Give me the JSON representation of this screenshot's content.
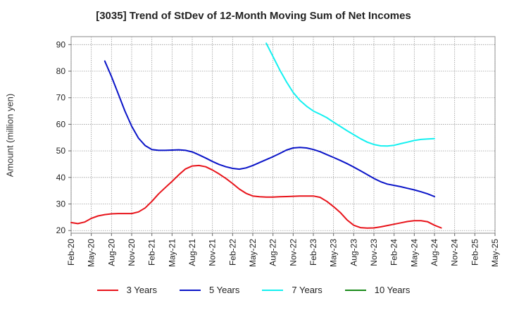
{
  "chart_data": {
    "type": "line",
    "title": "[3035]  Trend of StDev of 12-Month Moving Sum of Net Incomes",
    "xlabel": "",
    "ylabel": "Amount (million yen)",
    "ylim": [
      19,
      93
    ],
    "yticks": [
      20,
      30,
      40,
      50,
      60,
      70,
      80,
      90
    ],
    "grid": true,
    "legend_position": "bottom",
    "x_tick_labels": [
      "Feb-20",
      "May-20",
      "Aug-20",
      "Nov-20",
      "Feb-21",
      "May-21",
      "Aug-21",
      "Nov-21",
      "Feb-22",
      "May-22",
      "Aug-22",
      "Nov-22",
      "Feb-23",
      "May-23",
      "Aug-23",
      "Nov-23",
      "Feb-24",
      "May-24",
      "Aug-24",
      "Nov-24",
      "Feb-25",
      "May-25"
    ],
    "series": [
      {
        "name": "3 Years",
        "color": "#e8141b",
        "points": [
          [
            "Feb-20",
            23.0
          ],
          [
            "Mar-20",
            22.6
          ],
          [
            "Apr-20",
            23.2
          ],
          [
            "May-20",
            24.6
          ],
          [
            "Jun-20",
            25.5
          ],
          [
            "Jul-20",
            26.0
          ],
          [
            "Aug-20",
            26.3
          ],
          [
            "Sep-20",
            26.4
          ],
          [
            "Oct-20",
            26.4
          ],
          [
            "Nov-20",
            26.4
          ],
          [
            "Dec-20",
            27.0
          ],
          [
            "Jan-21",
            28.5
          ],
          [
            "Feb-21",
            31.0
          ],
          [
            "Mar-21",
            33.8
          ],
          [
            "Apr-21",
            36.2
          ],
          [
            "May-21",
            38.5
          ],
          [
            "Jun-21",
            41.0
          ],
          [
            "Jul-21",
            43.2
          ],
          [
            "Aug-21",
            44.3
          ],
          [
            "Sep-21",
            44.5
          ],
          [
            "Oct-21",
            44.0
          ],
          [
            "Nov-21",
            42.8
          ],
          [
            "Dec-21",
            41.3
          ],
          [
            "Jan-22",
            39.6
          ],
          [
            "Feb-22",
            37.7
          ],
          [
            "Mar-22",
            35.6
          ],
          [
            "Apr-22",
            34.0
          ],
          [
            "May-22",
            33.0
          ],
          [
            "Jun-22",
            32.7
          ],
          [
            "Jul-22",
            32.6
          ],
          [
            "Aug-22",
            32.6
          ],
          [
            "Sep-22",
            32.7
          ],
          [
            "Oct-22",
            32.8
          ],
          [
            "Nov-22",
            32.9
          ],
          [
            "Dec-22",
            33.0
          ],
          [
            "Jan-23",
            33.0
          ],
          [
            "Feb-23",
            33.0
          ],
          [
            "Mar-23",
            32.5
          ],
          [
            "Apr-23",
            31.0
          ],
          [
            "May-23",
            29.0
          ],
          [
            "Jun-23",
            26.8
          ],
          [
            "Jul-23",
            24.0
          ],
          [
            "Aug-23",
            22.0
          ],
          [
            "Sep-23",
            21.1
          ],
          [
            "Oct-23",
            20.9
          ],
          [
            "Nov-23",
            21.0
          ],
          [
            "Dec-23",
            21.4
          ],
          [
            "Jan-24",
            21.9
          ],
          [
            "Feb-24",
            22.4
          ],
          [
            "Mar-24",
            22.9
          ],
          [
            "Apr-24",
            23.4
          ],
          [
            "May-24",
            23.7
          ],
          [
            "Jun-24",
            23.7
          ],
          [
            "Jul-24",
            23.3
          ],
          [
            "Aug-24",
            22.0
          ],
          [
            "Sep-24",
            21.0
          ]
        ]
      },
      {
        "name": "5 Years",
        "color": "#0a14c8",
        "points": [
          [
            "Jul-20",
            83.8
          ],
          [
            "Aug-20",
            78.0
          ],
          [
            "Sep-20",
            71.5
          ],
          [
            "Oct-20",
            65.0
          ],
          [
            "Nov-20",
            59.3
          ],
          [
            "Dec-20",
            54.8
          ],
          [
            "Jan-21",
            52.0
          ],
          [
            "Feb-21",
            50.5
          ],
          [
            "Mar-21",
            50.2
          ],
          [
            "Apr-21",
            50.2
          ],
          [
            "May-21",
            50.3
          ],
          [
            "Jun-21",
            50.4
          ],
          [
            "Jul-21",
            50.2
          ],
          [
            "Aug-21",
            49.6
          ],
          [
            "Sep-21",
            48.5
          ],
          [
            "Oct-21",
            47.3
          ],
          [
            "Nov-21",
            46.0
          ],
          [
            "Dec-21",
            44.9
          ],
          [
            "Jan-22",
            44.0
          ],
          [
            "Feb-22",
            43.4
          ],
          [
            "Mar-22",
            43.1
          ],
          [
            "Apr-22",
            43.6
          ],
          [
            "May-22",
            44.5
          ],
          [
            "Jun-22",
            45.6
          ],
          [
            "Jul-22",
            46.7
          ],
          [
            "Aug-22",
            47.8
          ],
          [
            "Sep-22",
            49.0
          ],
          [
            "Oct-22",
            50.3
          ],
          [
            "Nov-22",
            51.1
          ],
          [
            "Dec-22",
            51.3
          ],
          [
            "Jan-23",
            51.1
          ],
          [
            "Feb-23",
            50.5
          ],
          [
            "Mar-23",
            49.7
          ],
          [
            "Apr-23",
            48.6
          ],
          [
            "May-23",
            47.5
          ],
          [
            "Jun-23",
            46.4
          ],
          [
            "Jul-23",
            45.2
          ],
          [
            "Aug-23",
            43.9
          ],
          [
            "Sep-23",
            42.5
          ],
          [
            "Oct-23",
            41.1
          ],
          [
            "Nov-23",
            39.6
          ],
          [
            "Dec-23",
            38.4
          ],
          [
            "Jan-24",
            37.5
          ],
          [
            "Feb-24",
            37.0
          ],
          [
            "Mar-24",
            36.5
          ],
          [
            "Apr-24",
            35.9
          ],
          [
            "May-24",
            35.3
          ],
          [
            "Jun-24",
            34.6
          ],
          [
            "Jul-24",
            33.8
          ],
          [
            "Aug-24",
            32.8
          ]
        ]
      },
      {
        "name": "7 Years",
        "color": "#14f0f0",
        "points": [
          [
            "Jul-22",
            90.5
          ],
          [
            "Aug-22",
            85.5
          ],
          [
            "Sep-22",
            80.5
          ],
          [
            "Oct-22",
            76.0
          ],
          [
            "Nov-22",
            72.0
          ],
          [
            "Dec-22",
            69.0
          ],
          [
            "Jan-23",
            66.8
          ],
          [
            "Feb-23",
            65.0
          ],
          [
            "Mar-23",
            63.8
          ],
          [
            "Apr-23",
            62.5
          ],
          [
            "May-23",
            60.8
          ],
          [
            "Jun-23",
            59.2
          ],
          [
            "Jul-23",
            57.6
          ],
          [
            "Aug-23",
            56.1
          ],
          [
            "Sep-23",
            54.6
          ],
          [
            "Oct-23",
            53.3
          ],
          [
            "Nov-23",
            52.4
          ],
          [
            "Dec-23",
            51.9
          ],
          [
            "Jan-24",
            51.8
          ],
          [
            "Feb-24",
            52.1
          ],
          [
            "Mar-24",
            52.7
          ],
          [
            "Apr-24",
            53.3
          ],
          [
            "May-24",
            53.9
          ],
          [
            "Jun-24",
            54.3
          ],
          [
            "Jul-24",
            54.5
          ],
          [
            "Aug-24",
            54.6
          ]
        ]
      },
      {
        "name": "10 Years",
        "color": "#1a8a1a",
        "points": []
      }
    ]
  }
}
